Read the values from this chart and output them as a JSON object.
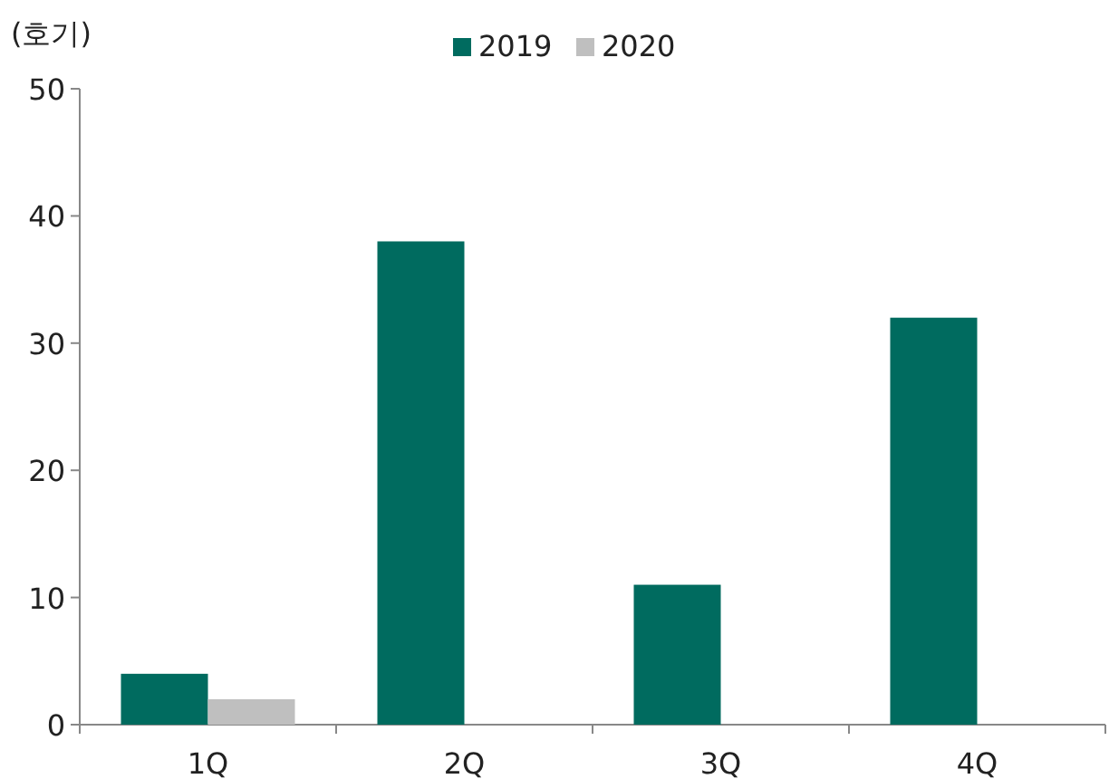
{
  "chart_data": {
    "type": "bar",
    "ylabel": "(호기)",
    "categories": [
      "1Q",
      "2Q",
      "3Q",
      "4Q"
    ],
    "series": [
      {
        "name": "2019",
        "color": "#006b5f",
        "values": [
          4,
          38,
          11,
          32
        ]
      },
      {
        "name": "2020",
        "color": "#bfbfbf",
        "values": [
          2,
          null,
          null,
          null
        ]
      }
    ],
    "ylim": [
      0,
      50
    ],
    "yticks": [
      0,
      10,
      20,
      30,
      40,
      50
    ],
    "legend": "top",
    "grid": false
  }
}
